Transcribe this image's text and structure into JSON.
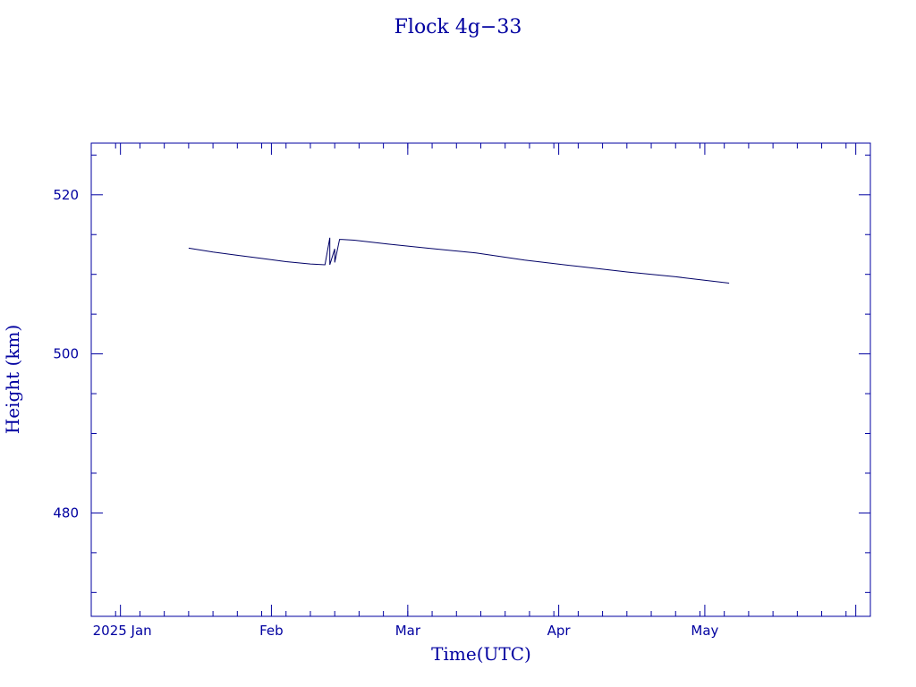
{
  "chart_data": {
    "type": "line",
    "title": "Flock 4g−33",
    "xlabel": "Time(UTC)",
    "ylabel": "Height (km)",
    "x_tick_labels": [
      "2025 Jan",
      "Feb",
      "Mar",
      "Apr",
      "May"
    ],
    "y_ticks": [
      480,
      500,
      520
    ],
    "ylim": [
      467,
      526.5
    ],
    "xlim": [
      "2024-12-26",
      "2025-06-04"
    ],
    "grid": false,
    "line_color": "#000066",
    "axis_color": "#0000a0",
    "series": [
      {
        "x": [
          "2025-01-15",
          "2025-01-20",
          "2025-01-25",
          "2025-01-30",
          "2025-02-04",
          "2025-02-09",
          "2025-02-12",
          "2025-02-13",
          "2025-02-13",
          "2025-02-14",
          "2025-02-14",
          "2025-02-15",
          "2025-02-18",
          "2025-02-25",
          "2025-03-05",
          "2025-03-15",
          "2025-03-25",
          "2025-04-05",
          "2025-04-15",
          "2025-04-25",
          "2025-05-06"
        ],
        "y": [
          513.3,
          512.8,
          512.4,
          512.0,
          511.6,
          511.3,
          511.2,
          514.6,
          511.2,
          513.2,
          511.5,
          514.4,
          514.3,
          513.8,
          513.3,
          512.7,
          511.8,
          511.0,
          510.3,
          509.7,
          508.9
        ]
      }
    ]
  }
}
